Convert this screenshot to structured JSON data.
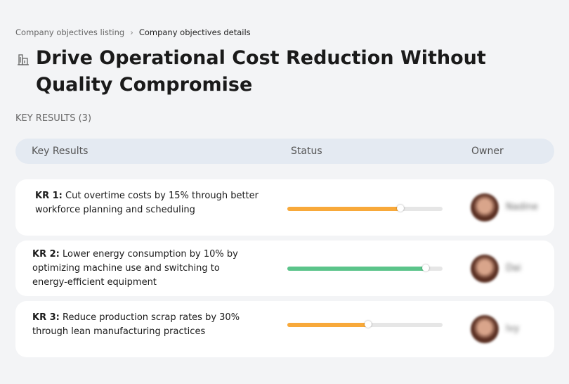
{
  "breadcrumb": [
    "Company objectives listing",
    "Company objectives details"
  ],
  "title": "Drive Operational Cost Reduction Without Quality Compromise",
  "section_label": "KEY RESULTS (3)",
  "table": {
    "headers": [
      "Key Results",
      "Status",
      "Owner"
    ],
    "rows": [
      {
        "label": "KR 1:",
        "text": "Cut overtime costs by 15% through better workforce planning and scheduling",
        "progress": 73,
        "color": "#f8a93a",
        "owner": "Nadine"
      },
      {
        "label": "KR 2:",
        "text": "Lower energy consumption by 10% by optimizing machine use and switching to energy-efficient equipment",
        "progress": 89,
        "color": "#5bc48a",
        "owner": "Dai"
      },
      {
        "label": "KR 3:",
        "text": "Reduce production scrap rates by 30% through lean manufacturing practices",
        "progress": 52,
        "color": "#f8a93a",
        "owner": "Ivy"
      }
    ]
  },
  "progress_max": 100
}
